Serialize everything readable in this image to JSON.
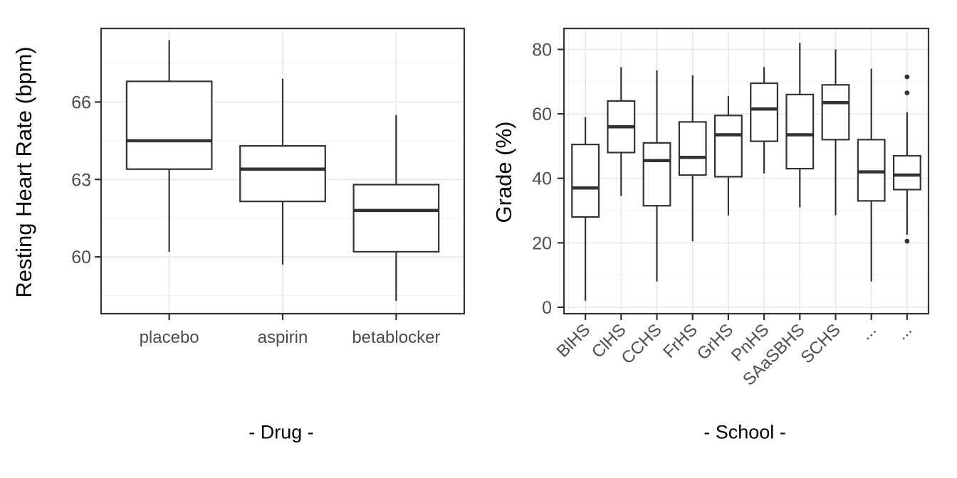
{
  "style": {
    "background": "#ffffff",
    "panel_border": "#333333",
    "box_stroke": "#333333",
    "grid_major": "#e8e8e8",
    "grid_minor": "#f3f3f3",
    "tick_mark_color": "#333333",
    "tick_label_color": "#4d4d4d",
    "axis_title_color": "#000000"
  },
  "chart_data": [
    {
      "type": "boxplot",
      "title": "",
      "xlabel": "- Drug -",
      "ylabel": "Resting Heart Rate (bpm)",
      "categories": [
        "placebo",
        "aspirin",
        "betablocker"
      ],
      "y_major_ticks": [
        60,
        63,
        66
      ],
      "y_minor_gridlines": [
        58.5,
        61.5,
        64.5,
        67.5
      ],
      "ylim": [
        57.8,
        68.85
      ],
      "x_label_angle": 0,
      "grid": true,
      "legend_position": "none",
      "boxes": [
        {
          "category": "placebo",
          "min": 60.2,
          "q1": 63.4,
          "median": 64.5,
          "q3": 66.8,
          "max": 68.4,
          "outliers": []
        },
        {
          "category": "aspirin",
          "min": 59.7,
          "q1": 62.15,
          "median": 63.4,
          "q3": 64.3,
          "max": 66.9,
          "outliers": []
        },
        {
          "category": "betablocker",
          "min": 58.3,
          "q1": 60.2,
          "median": 61.8,
          "q3": 62.8,
          "max": 65.5,
          "outliers": []
        }
      ]
    },
    {
      "type": "boxplot",
      "title": "",
      "xlabel": "- School -",
      "ylabel": "Grade (%)",
      "categories": [
        "BlHS",
        "ClHS",
        "CCHS",
        "FrHS",
        "GrHS",
        "PnHS",
        "SAaSBHS",
        "SCHS",
        "...",
        "..."
      ],
      "y_major_ticks": [
        0,
        20,
        40,
        60,
        80
      ],
      "y_minor_gridlines": [
        10,
        30,
        50,
        70
      ],
      "ylim": [
        -2,
        86.5
      ],
      "x_label_angle": 45,
      "grid": true,
      "legend_position": "none",
      "boxes": [
        {
          "category": "BlHS",
          "min": 2,
          "q1": 28,
          "median": 37,
          "q3": 50.5,
          "max": 59,
          "outliers": []
        },
        {
          "category": "ClHS",
          "min": 34.5,
          "q1": 48,
          "median": 56,
          "q3": 64,
          "max": 74.5,
          "outliers": []
        },
        {
          "category": "CCHS",
          "min": 8,
          "q1": 31.5,
          "median": 45.5,
          "q3": 51,
          "max": 73.5,
          "outliers": []
        },
        {
          "category": "FrHS",
          "min": 20.5,
          "q1": 41,
          "median": 46.5,
          "q3": 57.5,
          "max": 72,
          "outliers": []
        },
        {
          "category": "GrHS",
          "min": 28.5,
          "q1": 40.5,
          "median": 53.5,
          "q3": 59.5,
          "max": 65.5,
          "outliers": []
        },
        {
          "category": "PnHS",
          "min": 41.5,
          "q1": 51.5,
          "median": 61.5,
          "q3": 69.5,
          "max": 74.5,
          "outliers": []
        },
        {
          "category": "SAaSBHS",
          "min": 31,
          "q1": 43,
          "median": 53.5,
          "q3": 66,
          "max": 82,
          "outliers": []
        },
        {
          "category": "SCHS",
          "min": 28.5,
          "q1": 52,
          "median": 63.5,
          "q3": 69,
          "max": 80,
          "outliers": []
        },
        {
          "category": "...",
          "min": 8,
          "q1": 33,
          "median": 42,
          "q3": 52,
          "max": 74,
          "outliers": []
        },
        {
          "category": "...",
          "min": 22.5,
          "q1": 36.5,
          "median": 41,
          "q3": 47,
          "max": 60.5,
          "outliers": [
            71.5,
            66.5,
            20.5
          ]
        }
      ]
    }
  ]
}
